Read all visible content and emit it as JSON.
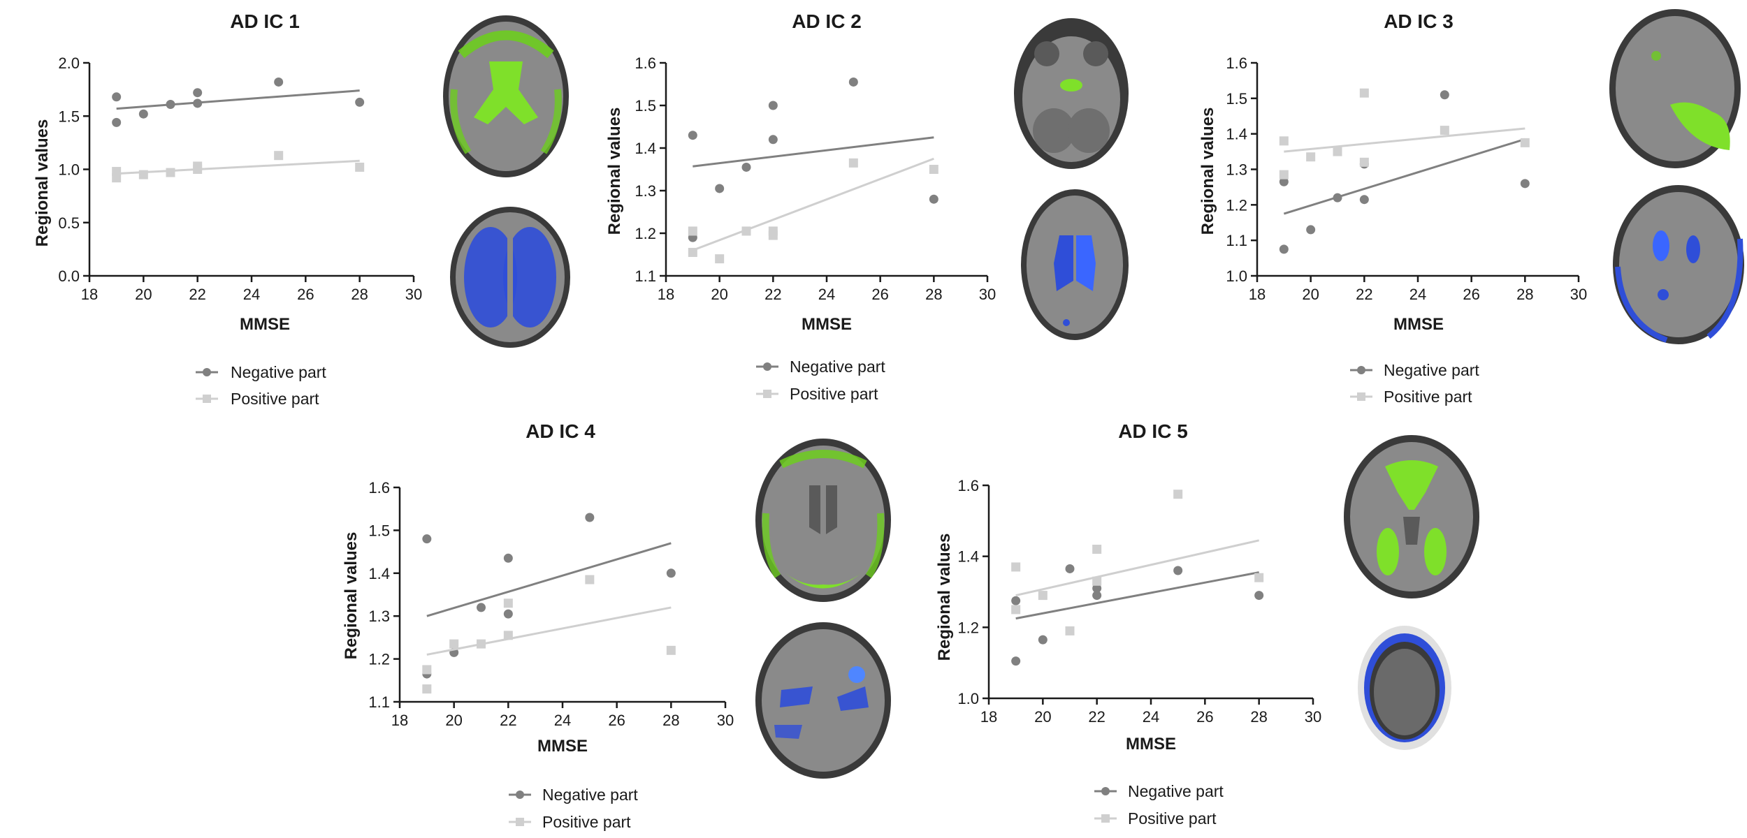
{
  "figure": {
    "legend": {
      "negative_label": "Negative part",
      "positive_label": "Positive part"
    }
  },
  "colors": {
    "negative": "#808080",
    "positive": "#cfcfcf",
    "brain_green": "#6dcc1f",
    "brain_blue": "#2f4ed8",
    "axis": "#1a1a1a"
  },
  "chart_data": [
    {
      "id": "ic1",
      "type": "scatter",
      "title": "AD IC 1",
      "xlabel": "MMSE",
      "ylabel": "Regional values",
      "xlim": [
        18,
        30
      ],
      "ylim": [
        0.0,
        2.0
      ],
      "xticks": [
        "18",
        "20",
        "22",
        "24",
        "26",
        "28",
        "30"
      ],
      "yticks": [
        "0.0",
        "0.5",
        "1.0",
        "1.5",
        "2.0"
      ],
      "series": [
        {
          "name": "Negative part",
          "marker": "circle",
          "points": [
            [
              19,
              1.68
            ],
            [
              19,
              1.44
            ],
            [
              20,
              1.52
            ],
            [
              21,
              1.61
            ],
            [
              22,
              1.72
            ],
            [
              22,
              1.62
            ],
            [
              25,
              1.82
            ],
            [
              28,
              1.63
            ]
          ],
          "fit": [
            [
              19,
              1.57
            ],
            [
              28,
              1.74
            ]
          ]
        },
        {
          "name": "Positive part",
          "marker": "square",
          "points": [
            [
              19,
              0.98
            ],
            [
              19,
              0.92
            ],
            [
              20,
              0.95
            ],
            [
              21,
              0.97
            ],
            [
              22,
              1.03
            ],
            [
              22,
              1.0
            ],
            [
              25,
              1.13
            ],
            [
              28,
              1.02
            ]
          ],
          "fit": [
            [
              19,
              0.96
            ],
            [
              28,
              1.08
            ]
          ]
        }
      ]
    },
    {
      "id": "ic2",
      "type": "scatter",
      "title": "AD IC 2",
      "xlabel": "MMSE",
      "ylabel": "Regional values",
      "xlim": [
        18,
        30
      ],
      "ylim": [
        1.1,
        1.6
      ],
      "xticks": [
        "18",
        "20",
        "22",
        "24",
        "26",
        "28",
        "30"
      ],
      "yticks": [
        "1.1",
        "1.2",
        "1.3",
        "1.4",
        "1.5",
        "1.6"
      ],
      "series": [
        {
          "name": "Negative part",
          "marker": "circle",
          "points": [
            [
              19,
              1.43
            ],
            [
              19,
              1.19
            ],
            [
              20,
              1.305
            ],
            [
              21,
              1.355
            ],
            [
              22,
              1.5
            ],
            [
              22,
              1.42
            ],
            [
              25,
              1.555
            ],
            [
              28,
              1.28
            ]
          ],
          "fit": [
            [
              19,
              1.357
            ],
            [
              28,
              1.425
            ]
          ]
        },
        {
          "name": "Positive part",
          "marker": "square",
          "points": [
            [
              19,
              1.205
            ],
            [
              19,
              1.155
            ],
            [
              20,
              1.14
            ],
            [
              21,
              1.205
            ],
            [
              22,
              1.205
            ],
            [
              22,
              1.195
            ],
            [
              25,
              1.365
            ],
            [
              28,
              1.35
            ]
          ],
          "fit": [
            [
              19,
              1.16
            ],
            [
              28,
              1.375
            ]
          ]
        }
      ]
    },
    {
      "id": "ic3",
      "type": "scatter",
      "title": "AD IC 3",
      "xlabel": "MMSE",
      "ylabel": "Regional values",
      "xlim": [
        18,
        30
      ],
      "ylim": [
        1.0,
        1.6
      ],
      "xticks": [
        "18",
        "20",
        "22",
        "24",
        "26",
        "28",
        "30"
      ],
      "yticks": [
        "1.0",
        "1.1",
        "1.2",
        "1.3",
        "1.4",
        "1.5",
        "1.6"
      ],
      "series": [
        {
          "name": "Negative part",
          "marker": "circle",
          "points": [
            [
              19,
              1.265
            ],
            [
              19,
              1.075
            ],
            [
              20,
              1.13
            ],
            [
              21,
              1.22
            ],
            [
              22,
              1.315
            ],
            [
              22,
              1.215
            ],
            [
              25,
              1.51
            ],
            [
              28,
              1.26
            ]
          ],
          "fit": [
            [
              19,
              1.175
            ],
            [
              28,
              1.385
            ]
          ]
        },
        {
          "name": "Positive part",
          "marker": "square",
          "points": [
            [
              19,
              1.38
            ],
            [
              19,
              1.285
            ],
            [
              20,
              1.335
            ],
            [
              21,
              1.35
            ],
            [
              22,
              1.515
            ],
            [
              22,
              1.32
            ],
            [
              25,
              1.41
            ],
            [
              28,
              1.375
            ]
          ],
          "fit": [
            [
              19,
              1.35
            ],
            [
              28,
              1.415
            ]
          ]
        }
      ]
    },
    {
      "id": "ic4",
      "type": "scatter",
      "title": "AD IC 4",
      "xlabel": "MMSE",
      "ylabel": "Regional values",
      "xlim": [
        18,
        30
      ],
      "ylim": [
        1.1,
        1.6
      ],
      "xticks": [
        "18",
        "20",
        "22",
        "24",
        "26",
        "28",
        "30"
      ],
      "yticks": [
        "1.1",
        "1.2",
        "1.3",
        "1.4",
        "1.5",
        "1.6"
      ],
      "series": [
        {
          "name": "Negative part",
          "marker": "circle",
          "points": [
            [
              19,
              1.48
            ],
            [
              19,
              1.165
            ],
            [
              20,
              1.215
            ],
            [
              21,
              1.32
            ],
            [
              22,
              1.435
            ],
            [
              22,
              1.305
            ],
            [
              25,
              1.53
            ],
            [
              28,
              1.4
            ]
          ],
          "fit": [
            [
              19,
              1.3
            ],
            [
              28,
              1.47
            ]
          ]
        },
        {
          "name": "Positive part",
          "marker": "square",
          "points": [
            [
              19,
              1.175
            ],
            [
              19,
              1.13
            ],
            [
              20,
              1.235
            ],
            [
              21,
              1.235
            ],
            [
              22,
              1.33
            ],
            [
              22,
              1.255
            ],
            [
              25,
              1.385
            ],
            [
              28,
              1.22
            ]
          ],
          "fit": [
            [
              19,
              1.21
            ],
            [
              28,
              1.32
            ]
          ]
        }
      ]
    },
    {
      "id": "ic5",
      "type": "scatter",
      "title": "AD IC 5",
      "xlabel": "MMSE",
      "ylabel": "Regional values",
      "xlim": [
        18,
        30
      ],
      "ylim": [
        1.0,
        1.6
      ],
      "xticks": [
        "18",
        "20",
        "22",
        "24",
        "26",
        "28",
        "30"
      ],
      "yticks": [
        "1.0",
        "1.2",
        "1.4",
        "1.6"
      ],
      "series": [
        {
          "name": "Negative part",
          "marker": "circle",
          "points": [
            [
              19,
              1.275
            ],
            [
              19,
              1.105
            ],
            [
              20,
              1.165
            ],
            [
              21,
              1.365
            ],
            [
              22,
              1.31
            ],
            [
              22,
              1.29
            ],
            [
              25,
              1.36
            ],
            [
              28,
              1.29
            ]
          ],
          "fit": [
            [
              19,
              1.225
            ],
            [
              28,
              1.355
            ]
          ]
        },
        {
          "name": "Positive part",
          "marker": "square",
          "points": [
            [
              19,
              1.37
            ],
            [
              19,
              1.25
            ],
            [
              20,
              1.29
            ],
            [
              21,
              1.19
            ],
            [
              22,
              1.42
            ],
            [
              22,
              1.33
            ],
            [
              25,
              1.575
            ],
            [
              28,
              1.34
            ]
          ],
          "fit": [
            [
              19,
              1.29
            ],
            [
              28,
              1.445
            ]
          ]
        }
      ]
    }
  ]
}
